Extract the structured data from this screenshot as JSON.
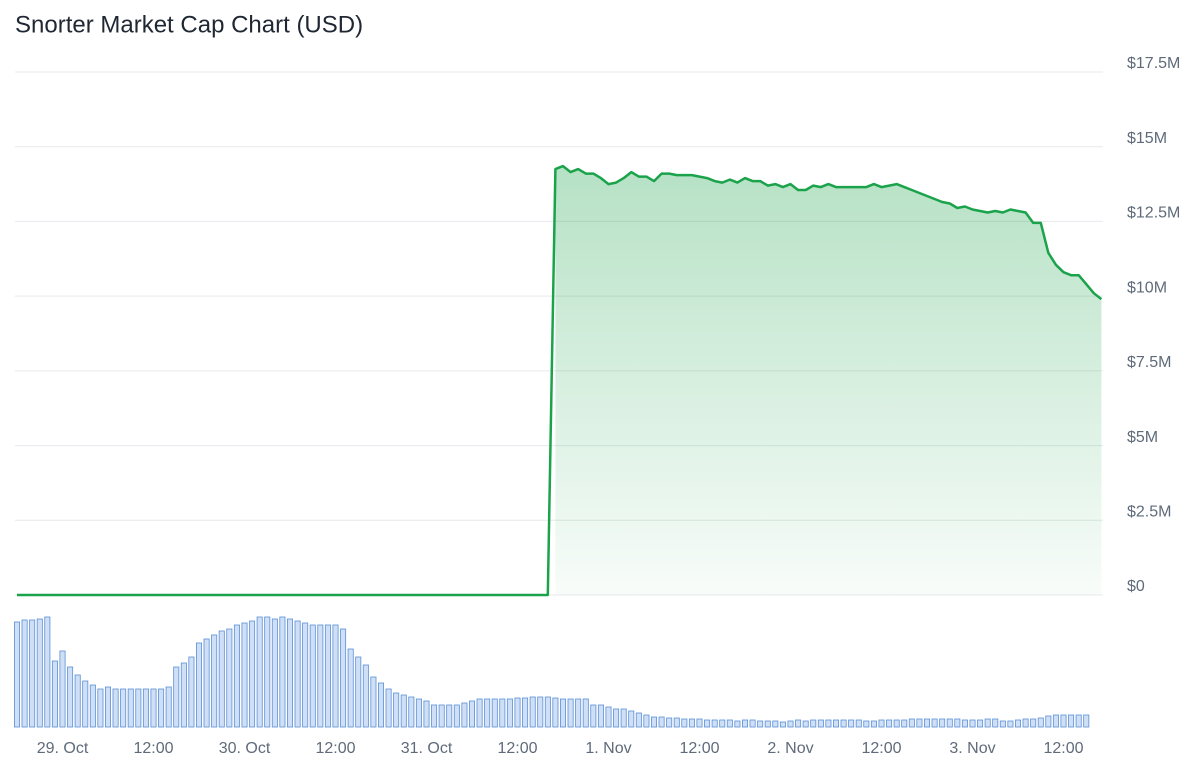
{
  "chart_data": [
    {
      "type": "area",
      "title": "Snorter Market Cap Chart (USD)",
      "color": "#1aa34a",
      "grid": true,
      "categories": [
        null,
        null,
        null,
        null,
        null,
        null,
        "29. Oct",
        null,
        null,
        null,
        null,
        null,
        null,
        null,
        null,
        null,
        null,
        null,
        "12:00",
        null,
        null,
        null,
        null,
        null,
        null,
        null,
        null,
        null,
        null,
        null,
        "30. Oct",
        null,
        null,
        null,
        null,
        null,
        null,
        null,
        null,
        null,
        null,
        null,
        "12:00",
        null,
        null,
        null,
        null,
        null,
        null,
        null,
        null,
        null,
        null,
        null,
        "31. Oct",
        null,
        null,
        null,
        null,
        null,
        null,
        null,
        null,
        null,
        null,
        null,
        "12:00",
        null,
        null,
        null,
        null,
        null,
        null,
        null,
        null,
        null,
        null,
        null,
        "1. Nov",
        null,
        null,
        null,
        null,
        null,
        null,
        null,
        null,
        null,
        null,
        null,
        "12:00",
        null,
        null,
        null,
        null,
        null,
        null,
        null,
        null,
        null,
        null,
        null,
        "2. Nov",
        null,
        null,
        null,
        null,
        null,
        null,
        null,
        null,
        null,
        null,
        null,
        "12:00",
        null,
        null,
        null,
        null,
        null,
        null,
        null,
        null,
        null,
        null,
        null,
        "3. Nov",
        null,
        null,
        null,
        null,
        null,
        null,
        null,
        null,
        null,
        null,
        null,
        "12:00",
        null,
        null,
        null,
        null,
        null
      ],
      "values": [
        0,
        0,
        0,
        0,
        0,
        0,
        0,
        0,
        0,
        0,
        0,
        0,
        0,
        0,
        0,
        0,
        0,
        0,
        0,
        0,
        0,
        0,
        0,
        0,
        0,
        0,
        0,
        0,
        0,
        0,
        0,
        0,
        0,
        0,
        0,
        0,
        0,
        0,
        0,
        0,
        0,
        0,
        0,
        0,
        0,
        0,
        0,
        0,
        0,
        0,
        0,
        0,
        0,
        0,
        0,
        0,
        0,
        0,
        0,
        0,
        0,
        0,
        0,
        0,
        0,
        0,
        0,
        0,
        0,
        0,
        0,
        14250000,
        14350000,
        14150000,
        14250000,
        14100000,
        14100000,
        13950000,
        13750000,
        13800000,
        13950000,
        14150000,
        14000000,
        14000000,
        13850000,
        14100000,
        14100000,
        14050000,
        14050000,
        14050000,
        14000000,
        13950000,
        13850000,
        13800000,
        13900000,
        13800000,
        13950000,
        13850000,
        13850000,
        13700000,
        13750000,
        13650000,
        13750000,
        13550000,
        13550000,
        13700000,
        13650000,
        13750000,
        13650000,
        13650000,
        13650000,
        13650000,
        13650000,
        13750000,
        13650000,
        13700000,
        13750000,
        13650000,
        13550000,
        13450000,
        13350000,
        13250000,
        13150000,
        13100000,
        12950000,
        13000000,
        12900000,
        12850000,
        12800000,
        12850000,
        12800000,
        12900000,
        12850000,
        12800000,
        12450000,
        12450000,
        11450000,
        11050000,
        10800000,
        10700000,
        10700000,
        10400000,
        10100000,
        9900000
      ],
      "ylim": [
        0,
        17500000
      ],
      "yticks": [
        {
          "value": 0,
          "label": "$0"
        },
        {
          "value": 2500000,
          "label": "$2.5M"
        },
        {
          "value": 5000000,
          "label": "$5M"
        },
        {
          "value": 7500000,
          "label": "$7.5M"
        },
        {
          "value": 10000000,
          "label": "$10M"
        },
        {
          "value": 12500000,
          "label": "$12.5M"
        },
        {
          "value": 15000000,
          "label": "$15M"
        },
        {
          "value": 17500000,
          "label": "$17.5M"
        }
      ]
    },
    {
      "type": "bar",
      "color": "#5b8fd6",
      "values": [
        105,
        107,
        107,
        108,
        110,
        66,
        76,
        60,
        52,
        46,
        42,
        38,
        40,
        38,
        38,
        38,
        38,
        38,
        38,
        38,
        40,
        60,
        64,
        70,
        84,
        88,
        92,
        96,
        98,
        102,
        104,
        106,
        110,
        110,
        108,
        110,
        108,
        106,
        104,
        102,
        102,
        102,
        102,
        98,
        78,
        70,
        62,
        50,
        44,
        38,
        34,
        32,
        30,
        28,
        26,
        22,
        22,
        22,
        22,
        24,
        26,
        28,
        28,
        28,
        28,
        28,
        29,
        29,
        30,
        30,
        30,
        29,
        28,
        28,
        28,
        28,
        22,
        22,
        20,
        18,
        18,
        16,
        14,
        12,
        10,
        10,
        9,
        9,
        8,
        8,
        8,
        7,
        7,
        7,
        7,
        6,
        7,
        7,
        6,
        6,
        6,
        5,
        6,
        7,
        6,
        7,
        7,
        7,
        7,
        7,
        7,
        7,
        6,
        6,
        7,
        7,
        7,
        7,
        8,
        8,
        8,
        8,
        8,
        8,
        8,
        7,
        7,
        7,
        8,
        8,
        6,
        6,
        7,
        8,
        8,
        9,
        11,
        12,
        12,
        12,
        12,
        12,
        null,
        null
      ]
    }
  ]
}
